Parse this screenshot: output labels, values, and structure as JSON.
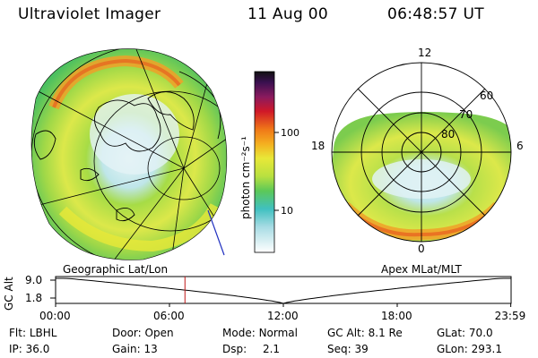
{
  "header": {
    "instrument": "Ultraviolet Imager",
    "date": "11 Aug 00",
    "time": "06:48:57 UT"
  },
  "geo_panel": {
    "label": "Geographic Lat/Lon"
  },
  "apex_panel": {
    "label": "Apex MLat/MLT",
    "mlt_labels": [
      "12",
      "18",
      "6",
      "0"
    ],
    "mlat_labels": [
      "60",
      "70",
      "80"
    ]
  },
  "colorbar": {
    "unit_label": "photon cm⁻²s⁻¹",
    "tick_labels": [
      "100",
      "10"
    ]
  },
  "timeline": {
    "axis_label": "GC Alt",
    "y_ticks": [
      "9.0",
      "1.8"
    ],
    "x_ticks": [
      "00:00",
      "06:00",
      "12:00",
      "18:00",
      "23:59"
    ],
    "current_time_hours": 6.816,
    "colors": {
      "marker": "#c01818"
    }
  },
  "info": {
    "flt_label": "Flt:",
    "flt_value": "LBHL",
    "door_label": "Door:",
    "door_value": "Open",
    "mode_label": "Mode:",
    "mode_value": "Normal",
    "gcalt_label": "GC Alt:",
    "gcalt_value": "8.1 Re",
    "glat_label": "GLat:",
    "glat_value": "70.0",
    "ip_label": "IP:",
    "ip_value": "36.0",
    "gain_label": "Gain:",
    "gain_value": "13",
    "dsp_label": "Dsp:",
    "dsp_value": "2.1",
    "seq_label": "Seq:",
    "seq_value": "39",
    "glon_label": "GLon:",
    "glon_value": "293.1"
  }
}
